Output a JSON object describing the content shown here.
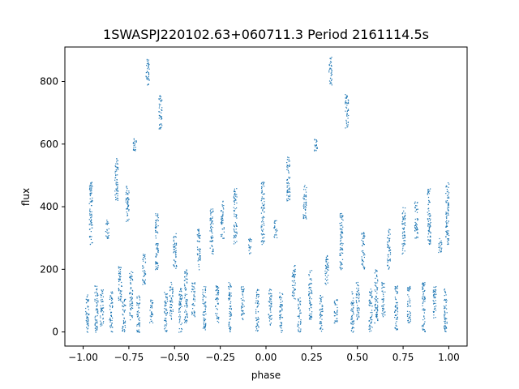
{
  "chart_data": {
    "type": "scatter",
    "title": "1SWASPJ220102.63+060711.3 Period 2161114.5s",
    "xlabel": "phase",
    "ylabel": "flux",
    "xlim": [
      -1.1,
      1.1
    ],
    "ylim": [
      -45,
      910
    ],
    "xticks": [
      -1.0,
      -0.75,
      -0.5,
      -0.25,
      0.0,
      0.25,
      0.5,
      0.75,
      1.0
    ],
    "xtick_labels": [
      "−1.00",
      "−0.75",
      "−0.50",
      "−0.25",
      "0.00",
      "0.25",
      "0.50",
      "0.75",
      "1.00"
    ],
    "yticks": [
      0,
      200,
      400,
      600,
      800
    ],
    "ytick_labels": [
      "0",
      "200",
      "400",
      "600",
      "800"
    ],
    "grid": false,
    "marker_color": "#1f77b4",
    "series": [
      {
        "clusters": [
          {
            "x": -0.98,
            "y": [
              0,
              120
            ]
          },
          {
            "x": -0.96,
            "y": [
              280,
              480
            ]
          },
          {
            "x": -0.93,
            "y": [
              0,
              150
            ]
          },
          {
            "x": -0.9,
            "y": [
              20,
              140
            ]
          },
          {
            "x": -0.87,
            "y": [
              300,
              360
            ]
          },
          {
            "x": -0.85,
            "y": [
              0,
              130
            ]
          },
          {
            "x": -0.82,
            "y": [
              420,
              560
            ]
          },
          {
            "x": -0.8,
            "y": [
              100,
              220
            ]
          },
          {
            "x": -0.78,
            "y": [
              0,
              110
            ]
          },
          {
            "x": -0.76,
            "y": [
              350,
              470
            ]
          },
          {
            "x": -0.74,
            "y": [
              40,
              200
            ]
          },
          {
            "x": -0.72,
            "y": [
              580,
              620
            ]
          },
          {
            "x": -0.7,
            "y": [
              0,
              120
            ]
          },
          {
            "x": -0.67,
            "y": [
              150,
              250
            ]
          },
          {
            "x": -0.65,
            "y": [
              790,
              880
            ]
          },
          {
            "x": -0.63,
            "y": [
              30,
              110
            ]
          },
          {
            "x": -0.6,
            "y": [
              200,
              380
            ]
          },
          {
            "x": -0.58,
            "y": [
              650,
              760
            ]
          },
          {
            "x": -0.55,
            "y": [
              0,
              130
            ]
          },
          {
            "x": -0.52,
            "y": [
              40,
              160
            ]
          },
          {
            "x": -0.5,
            "y": [
              200,
              320
            ]
          },
          {
            "x": -0.47,
            "y": [
              0,
              140
            ]
          },
          {
            "x": -0.44,
            "y": [
              30,
              200
            ]
          },
          {
            "x": -0.4,
            "y": [
              50,
              160
            ]
          },
          {
            "x": -0.37,
            "y": [
              200,
              330
            ]
          },
          {
            "x": -0.34,
            "y": [
              0,
              150
            ]
          },
          {
            "x": -0.3,
            "y": [
              250,
              400
            ]
          },
          {
            "x": -0.27,
            "y": [
              30,
              150
            ]
          },
          {
            "x": -0.24,
            "y": [
              300,
              420
            ]
          },
          {
            "x": -0.2,
            "y": [
              0,
              160
            ]
          },
          {
            "x": -0.17,
            "y": [
              280,
              460
            ]
          },
          {
            "x": -0.13,
            "y": [
              40,
              150
            ]
          },
          {
            "x": -0.09,
            "y": [
              250,
              300
            ]
          },
          {
            "x": -0.05,
            "y": [
              0,
              140
            ]
          },
          {
            "x": -0.02,
            "y": [
              280,
              480
            ]
          },
          {
            "x": 0.02,
            "y": [
              20,
              140
            ]
          },
          {
            "x": 0.05,
            "y": [
              300,
              360
            ]
          },
          {
            "x": 0.08,
            "y": [
              0,
              130
            ]
          },
          {
            "x": 0.12,
            "y": [
              420,
              560
            ]
          },
          {
            "x": 0.15,
            "y": [
              100,
              220
            ]
          },
          {
            "x": 0.18,
            "y": [
              0,
              110
            ]
          },
          {
            "x": 0.21,
            "y": [
              350,
              470
            ]
          },
          {
            "x": 0.24,
            "y": [
              40,
              200
            ]
          },
          {
            "x": 0.27,
            "y": [
              580,
              620
            ]
          },
          {
            "x": 0.3,
            "y": [
              0,
              120
            ]
          },
          {
            "x": 0.33,
            "y": [
              150,
              250
            ]
          },
          {
            "x": 0.35,
            "y": [
              790,
              880
            ]
          },
          {
            "x": 0.38,
            "y": [
              30,
              110
            ]
          },
          {
            "x": 0.41,
            "y": [
              200,
              380
            ]
          },
          {
            "x": 0.44,
            "y": [
              650,
              760
            ]
          },
          {
            "x": 0.47,
            "y": [
              0,
              130
            ]
          },
          {
            "x": 0.5,
            "y": [
              40,
              160
            ]
          },
          {
            "x": 0.53,
            "y": [
              200,
              320
            ]
          },
          {
            "x": 0.57,
            "y": [
              0,
              140
            ]
          },
          {
            "x": 0.6,
            "y": [
              30,
              200
            ]
          },
          {
            "x": 0.64,
            "y": [
              50,
              160
            ]
          },
          {
            "x": 0.67,
            "y": [
              200,
              330
            ]
          },
          {
            "x": 0.71,
            "y": [
              0,
              150
            ]
          },
          {
            "x": 0.75,
            "y": [
              250,
              400
            ]
          },
          {
            "x": 0.78,
            "y": [
              30,
              150
            ]
          },
          {
            "x": 0.82,
            "y": [
              300,
              420
            ]
          },
          {
            "x": 0.86,
            "y": [
              0,
              160
            ]
          },
          {
            "x": 0.89,
            "y": [
              280,
              460
            ]
          },
          {
            "x": 0.92,
            "y": [
              40,
              150
            ]
          },
          {
            "x": 0.95,
            "y": [
              250,
              300
            ]
          },
          {
            "x": 0.98,
            "y": [
              0,
              140
            ]
          },
          {
            "x": 0.99,
            "y": [
              280,
              480
            ]
          }
        ]
      }
    ]
  }
}
